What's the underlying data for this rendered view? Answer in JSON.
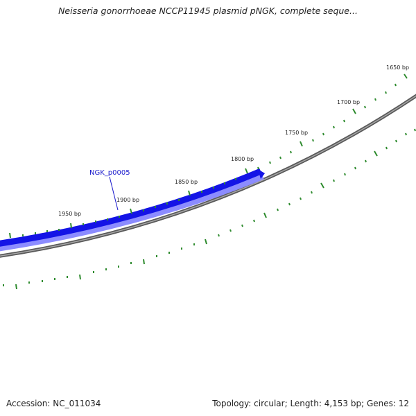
{
  "title": "Neisseria gonorrhoeae NCCP11945 plasmid pNGK, complete seque...",
  "footer": {
    "accession": "Accession: NC_011034",
    "summary": "Topology: circular; Length: 4,153 bp; Genes: 12"
  },
  "colors": {
    "tick": "#2e8b2e",
    "backbone": "#7a7a7a",
    "gene_fill": "#1414e6",
    "gene_highlight": "#8c8cff",
    "gene_label": "#1a1acc"
  },
  "map": {
    "bp_labels": [
      "1650 bp",
      "1700 bp",
      "1750 bp",
      "1800 bp",
      "1850 bp",
      "1900 bp",
      "1950 bp"
    ],
    "gene": {
      "name": "NGK_p0005",
      "strand": "reverse"
    }
  }
}
